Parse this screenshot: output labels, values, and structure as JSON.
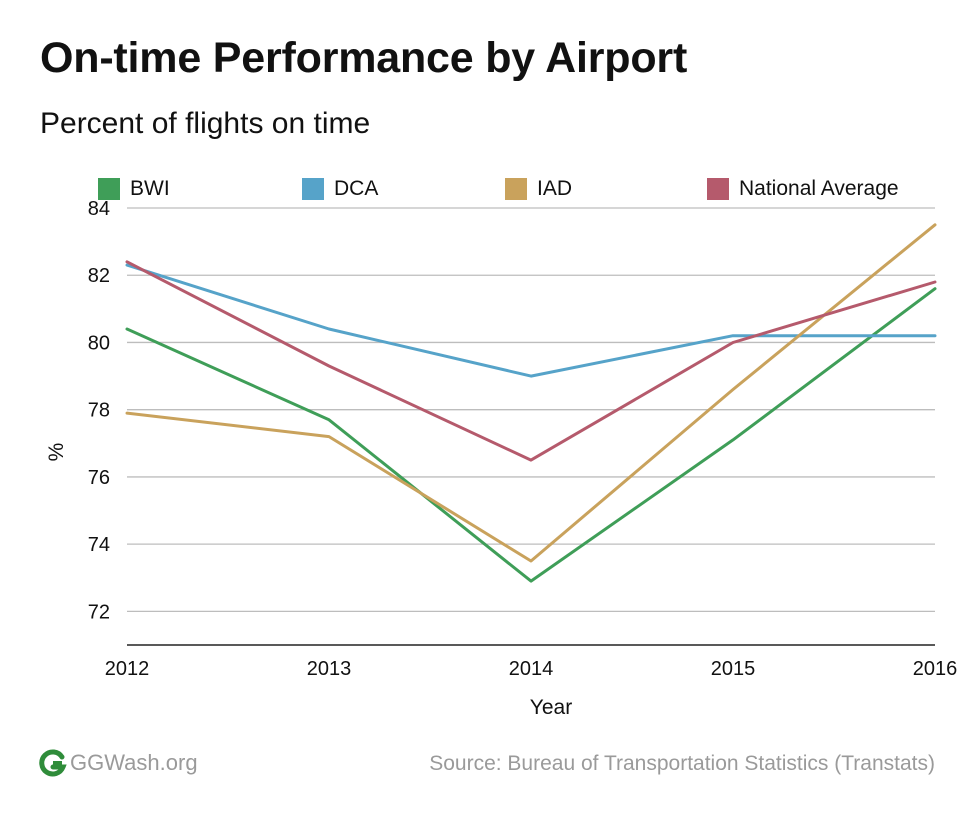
{
  "chart_data": {
    "type": "line",
    "title": "On-time Performance by Airport",
    "subtitle": "Percent of flights on time",
    "xlabel": "Year",
    "ylabel": "%",
    "x": [
      2012,
      2013,
      2014,
      2015,
      2016
    ],
    "ylim": [
      71,
      84
    ],
    "yticks": [
      72,
      74,
      76,
      78,
      80,
      82,
      84
    ],
    "grid": true,
    "legend_position": "top",
    "series": [
      {
        "name": "BWI",
        "color": "#3f9e58",
        "values": [
          80.4,
          77.7,
          72.9,
          77.1,
          81.6
        ]
      },
      {
        "name": "DCA",
        "color": "#56a3c9",
        "values": [
          82.3,
          80.4,
          79.0,
          80.2,
          80.2
        ]
      },
      {
        "name": "IAD",
        "color": "#c9a25c",
        "values": [
          77.9,
          77.2,
          73.5,
          78.6,
          83.5
        ]
      },
      {
        "name": "National Average",
        "color": "#b55a6c",
        "values": [
          82.4,
          79.3,
          76.5,
          80.0,
          81.8
        ]
      }
    ]
  },
  "footer": {
    "site": "GGWash.org",
    "source": "Source: Bureau of Transportation Statistics (Transtats)"
  }
}
